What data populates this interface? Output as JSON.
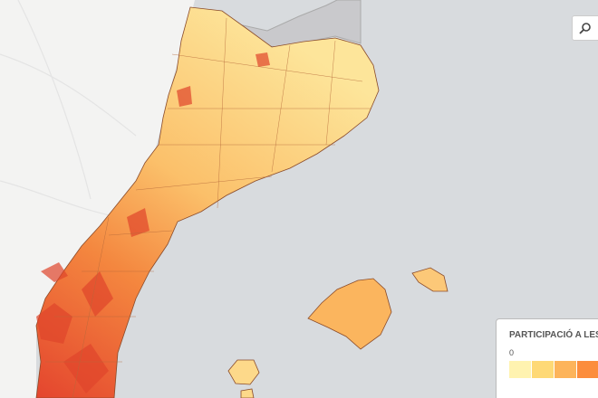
{
  "legend": {
    "title": "PARTICIPACIÓ A LES",
    "min_label": "0",
    "colors": [
      "#fff3b0",
      "#fed976",
      "#fdb45a",
      "#fc8d3c",
      "#f46d3a"
    ]
  }
}
